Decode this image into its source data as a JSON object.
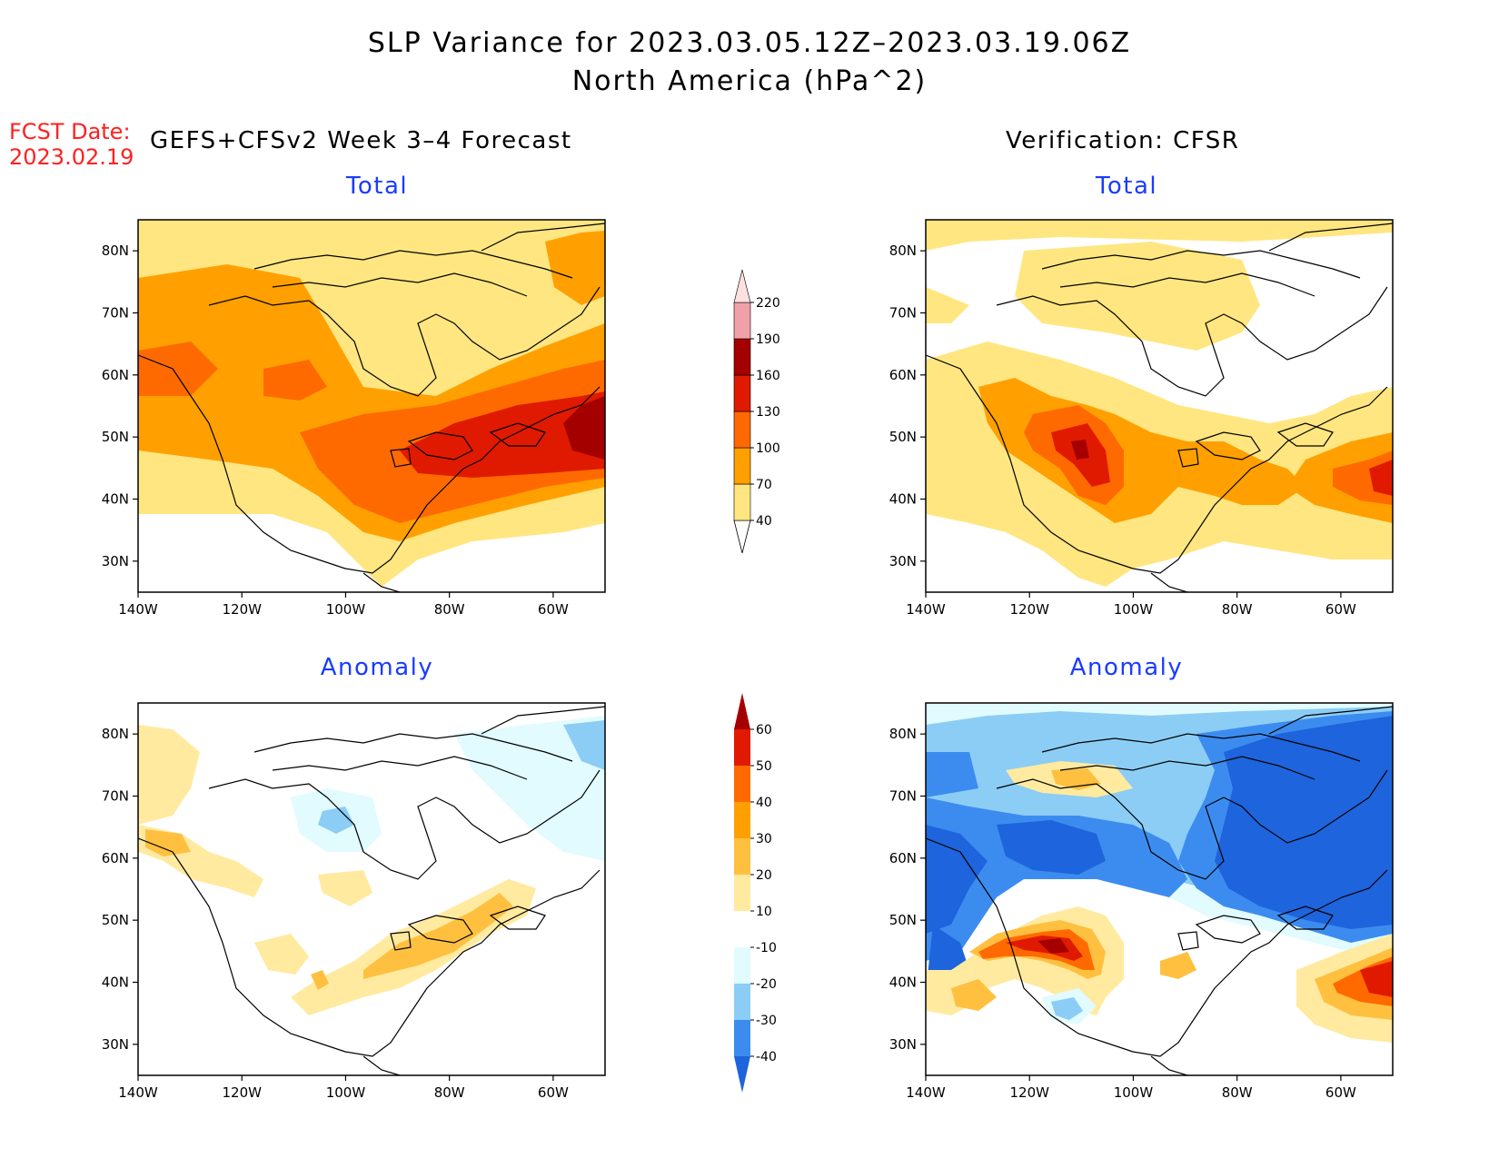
{
  "title": {
    "line1": "SLP Variance for 2023.03.05.12Z–2023.03.19.06Z",
    "line2": "North America (hPa^2)"
  },
  "forecast": {
    "date_label": "FCST Date:",
    "date_value": "2023.02.19",
    "header": "GEFS+CFSv2 Week 3–4 Forecast"
  },
  "verification": {
    "header": "Verification: CFSR"
  },
  "panels": {
    "top_left": {
      "subtitle": "Total"
    },
    "top_right": {
      "subtitle": "Total"
    },
    "bottom_left": {
      "subtitle": "Anomaly"
    },
    "bottom_right": {
      "subtitle": "Anomaly"
    }
  },
  "axes": {
    "lon_labels": [
      "140W",
      "120W",
      "100W",
      "80W",
      "60W"
    ],
    "lat_labels": [
      "80N",
      "70N",
      "60N",
      "50N",
      "40N",
      "30N"
    ],
    "lon_range": [
      -140,
      -50
    ],
    "lat_range": [
      25,
      85
    ]
  },
  "legend_total": {
    "levels": [
      "40",
      "70",
      "100",
      "130",
      "160",
      "190",
      "220"
    ],
    "colors": [
      "#ffe680",
      "#ffa000",
      "#ff6a00",
      "#e01a00",
      "#a50000",
      "#f0a0a8",
      "#fde0e0"
    ]
  },
  "legend_anomaly": {
    "levels": [
      "-40",
      "-30",
      "-20",
      "-10",
      "10",
      "20",
      "30",
      "40",
      "50",
      "60"
    ],
    "colors": [
      "#1e64dc",
      "#3c8cf0",
      "#8ccdf5",
      "#e1fbff",
      "#ffffff",
      "#ffeaa0",
      "#ffc040",
      "#ffa000",
      "#ff6a00",
      "#e01a00",
      "#a50000"
    ]
  }
}
